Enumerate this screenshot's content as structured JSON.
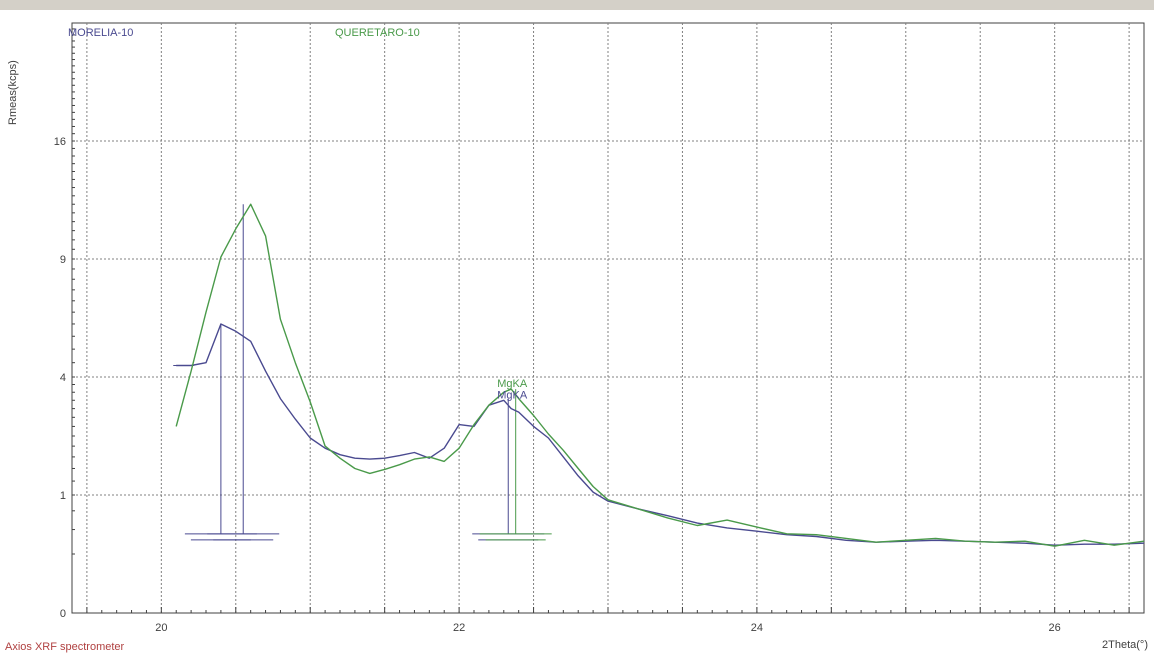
{
  "chart_data": {
    "type": "line",
    "title": "",
    "xlabel": "2Theta(°)",
    "ylabel": "Rmeas(kcps)",
    "footer_label": "Axios XRF spectrometer",
    "xlim": [
      19.4,
      26.6
    ],
    "ylim": [
      0,
      25
    ],
    "y_scale": "sqrt",
    "x_ticks": [
      20,
      22,
      24,
      26
    ],
    "x_tick_labels": [
      "20",
      "22",
      "24",
      "26"
    ],
    "y_ticks": [
      0,
      1,
      4,
      9,
      16
    ],
    "y_tick_labels": [
      "0",
      "1",
      "4",
      "9",
      "16"
    ],
    "grid": true,
    "legend_placement": "top",
    "colors": {
      "morelia": "#4a4a90",
      "queretaro": "#4a9a4a",
      "frame": "#c0c0c0",
      "axis": "#404040",
      "grid": "#808080",
      "footer": "#b04040"
    },
    "series": [
      {
        "name": "MORELIA-10",
        "color": "#4a4a90",
        "x": [
          20.1,
          20.2,
          20.3,
          20.4,
          20.5,
          20.6,
          20.7,
          20.8,
          20.9,
          21.0,
          21.1,
          21.2,
          21.3,
          21.4,
          21.5,
          21.6,
          21.7,
          21.8,
          21.9,
          22.0,
          22.1,
          22.2,
          22.3,
          22.35,
          22.4,
          22.5,
          22.6,
          22.7,
          22.8,
          22.9,
          23.0,
          23.2,
          23.4,
          23.6,
          23.8,
          24.0,
          24.2,
          24.4,
          24.6,
          24.8,
          25.0,
          25.2,
          25.4,
          25.6,
          25.8,
          26.0,
          26.2,
          26.4,
          26.6
        ],
        "y": [
          4.4,
          4.4,
          4.5,
          6.0,
          5.7,
          5.3,
          4.2,
          3.3,
          2.7,
          2.2,
          1.95,
          1.8,
          1.72,
          1.7,
          1.72,
          1.78,
          1.85,
          1.72,
          1.95,
          2.55,
          2.5,
          3.1,
          3.25,
          3.0,
          2.9,
          2.5,
          2.2,
          1.75,
          1.35,
          1.05,
          0.9,
          0.78,
          0.68,
          0.58,
          0.52,
          0.48,
          0.44,
          0.42,
          0.38,
          0.36,
          0.37,
          0.38,
          0.37,
          0.36,
          0.35,
          0.33,
          0.34,
          0.34,
          0.35
        ]
      },
      {
        "name": "QUERETARO-10",
        "color": "#4a9a4a",
        "x": [
          20.1,
          20.2,
          20.3,
          20.4,
          20.5,
          20.6,
          20.7,
          20.8,
          20.9,
          21.0,
          21.1,
          21.2,
          21.3,
          21.4,
          21.5,
          21.6,
          21.7,
          21.8,
          21.9,
          22.0,
          22.1,
          22.2,
          22.3,
          22.35,
          22.4,
          22.5,
          22.6,
          22.7,
          22.8,
          22.9,
          23.0,
          23.2,
          23.4,
          23.6,
          23.8,
          24.0,
          24.2,
          24.4,
          24.6,
          24.8,
          25.0,
          25.2,
          25.4,
          25.6,
          25.8,
          26.0,
          26.2,
          26.4,
          26.6
        ],
        "y": [
          2.5,
          4.2,
          6.5,
          9.1,
          10.6,
          12.0,
          10.2,
          6.2,
          4.5,
          3.2,
          2.0,
          1.72,
          1.5,
          1.4,
          1.48,
          1.58,
          1.7,
          1.75,
          1.65,
          1.95,
          2.55,
          3.1,
          3.5,
          3.6,
          3.3,
          2.8,
          2.3,
          1.9,
          1.5,
          1.15,
          0.92,
          0.78,
          0.65,
          0.55,
          0.62,
          0.53,
          0.45,
          0.44,
          0.4,
          0.36,
          0.38,
          0.4,
          0.37,
          0.36,
          0.37,
          0.32,
          0.38,
          0.33,
          0.37
        ]
      }
    ],
    "annotations": [
      {
        "text": "MgKA",
        "x": 22.35,
        "y": 3.6,
        "color": "#4a9a4a"
      },
      {
        "text": "MgKA",
        "x": 22.35,
        "y": 3.25,
        "color": "#4a4a90"
      }
    ],
    "peak_markers": [
      {
        "x": 20.4,
        "top": 6.0,
        "color": "#4a4a90"
      },
      {
        "x": 20.55,
        "top": 12.0,
        "color": "#4a4a90"
      },
      {
        "x": 22.33,
        "top": 3.3,
        "color": "#4a4a90"
      },
      {
        "x": 22.38,
        "top": 3.6,
        "color": "#4a9a4a"
      }
    ]
  }
}
